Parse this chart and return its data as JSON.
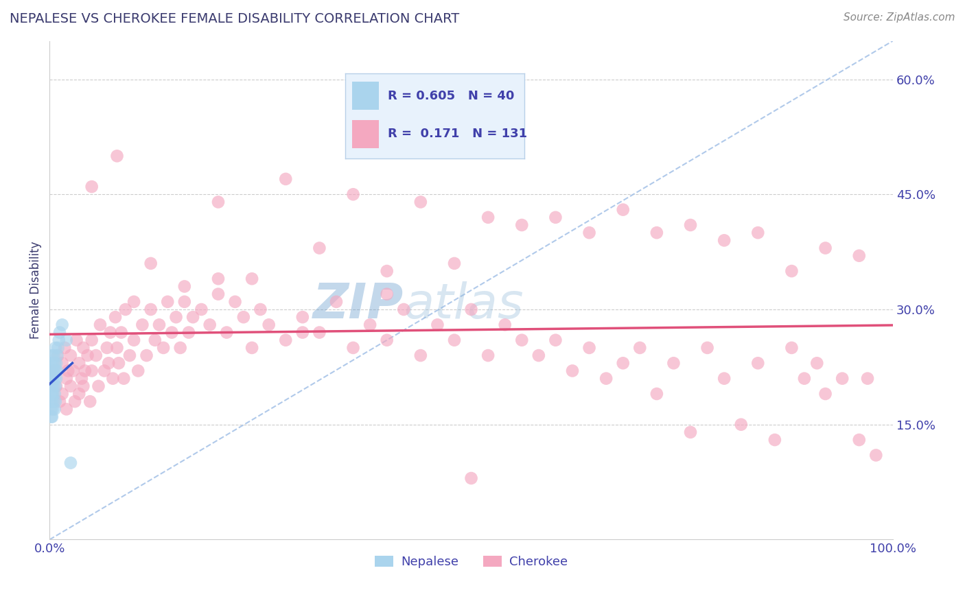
{
  "title": "NEPALESE VS CHEROKEE FEMALE DISABILITY CORRELATION CHART",
  "source_text": "Source: ZipAtlas.com",
  "ylabel": "Female Disability",
  "title_color": "#3a3a6e",
  "source_color": "#888888",
  "axis_label_color": "#3a3a6e",
  "tick_color": "#4040aa",
  "background_color": "#ffffff",
  "grid_color": "#cccccc",
  "xlim": [
    0.0,
    1.0
  ],
  "ylim": [
    0.0,
    0.65
  ],
  "yticks": [
    0.15,
    0.3,
    0.45,
    0.6
  ],
  "ytick_labels": [
    "15.0%",
    "30.0%",
    "45.0%",
    "60.0%"
  ],
  "xtick_left_label": "0.0%",
  "xtick_right_label": "100.0%",
  "nepalese_color": "#aad4ed",
  "cherokee_color": "#f4a8c0",
  "nepalese_line_color": "#3355cc",
  "cherokee_line_color": "#e0507a",
  "diag_line_color": "#a8c4e8",
  "legend_box_color": "#e8f2fc",
  "legend_border_color": "#b8d0e8",
  "R_nepalese": 0.605,
  "N_nepalese": 40,
  "R_cherokee": 0.171,
  "N_cherokee": 131,
  "nepalese_x": [
    0.001,
    0.001,
    0.001,
    0.002,
    0.002,
    0.002,
    0.002,
    0.002,
    0.003,
    0.003,
    0.003,
    0.003,
    0.003,
    0.003,
    0.004,
    0.004,
    0.004,
    0.004,
    0.005,
    0.005,
    0.005,
    0.005,
    0.006,
    0.006,
    0.006,
    0.006,
    0.007,
    0.007,
    0.007,
    0.007,
    0.008,
    0.008,
    0.009,
    0.009,
    0.01,
    0.011,
    0.012,
    0.015,
    0.02,
    0.025
  ],
  "nepalese_y": [
    0.18,
    0.2,
    0.22,
    0.17,
    0.19,
    0.21,
    0.23,
    0.16,
    0.18,
    0.2,
    0.22,
    0.19,
    0.24,
    0.16,
    0.19,
    0.21,
    0.23,
    0.17,
    0.2,
    0.22,
    0.18,
    0.24,
    0.19,
    0.21,
    0.23,
    0.17,
    0.2,
    0.22,
    0.18,
    0.25,
    0.21,
    0.23,
    0.22,
    0.24,
    0.25,
    0.26,
    0.27,
    0.28,
    0.26,
    0.1
  ],
  "cherokee_x": [
    0.005,
    0.008,
    0.01,
    0.012,
    0.015,
    0.015,
    0.018,
    0.02,
    0.02,
    0.022,
    0.025,
    0.025,
    0.028,
    0.03,
    0.032,
    0.035,
    0.035,
    0.038,
    0.04,
    0.04,
    0.042,
    0.045,
    0.048,
    0.05,
    0.05,
    0.055,
    0.058,
    0.06,
    0.065,
    0.068,
    0.07,
    0.072,
    0.075,
    0.078,
    0.08,
    0.082,
    0.085,
    0.088,
    0.09,
    0.095,
    0.1,
    0.105,
    0.11,
    0.115,
    0.12,
    0.125,
    0.13,
    0.135,
    0.14,
    0.145,
    0.15,
    0.155,
    0.16,
    0.165,
    0.17,
    0.18,
    0.19,
    0.2,
    0.21,
    0.22,
    0.23,
    0.24,
    0.25,
    0.26,
    0.28,
    0.3,
    0.32,
    0.34,
    0.36,
    0.38,
    0.4,
    0.42,
    0.44,
    0.46,
    0.48,
    0.5,
    0.52,
    0.54,
    0.56,
    0.58,
    0.6,
    0.62,
    0.64,
    0.66,
    0.68,
    0.7,
    0.72,
    0.74,
    0.76,
    0.78,
    0.8,
    0.82,
    0.84,
    0.86,
    0.88,
    0.895,
    0.91,
    0.92,
    0.94,
    0.96,
    0.97,
    0.98,
    0.05,
    0.08,
    0.12,
    0.16,
    0.2,
    0.24,
    0.28,
    0.32,
    0.36,
    0.4,
    0.44,
    0.48,
    0.52,
    0.56,
    0.6,
    0.64,
    0.68,
    0.72,
    0.76,
    0.8,
    0.84,
    0.88,
    0.92,
    0.96,
    0.1,
    0.2,
    0.3,
    0.4,
    0.5
  ],
  "cherokee_y": [
    0.22,
    0.2,
    0.24,
    0.18,
    0.23,
    0.19,
    0.25,
    0.21,
    0.17,
    0.22,
    0.2,
    0.24,
    0.22,
    0.18,
    0.26,
    0.23,
    0.19,
    0.21,
    0.25,
    0.2,
    0.22,
    0.24,
    0.18,
    0.22,
    0.26,
    0.24,
    0.2,
    0.28,
    0.22,
    0.25,
    0.23,
    0.27,
    0.21,
    0.29,
    0.25,
    0.23,
    0.27,
    0.21,
    0.3,
    0.24,
    0.26,
    0.22,
    0.28,
    0.24,
    0.3,
    0.26,
    0.28,
    0.25,
    0.31,
    0.27,
    0.29,
    0.25,
    0.31,
    0.27,
    0.29,
    0.3,
    0.28,
    0.32,
    0.27,
    0.31,
    0.29,
    0.25,
    0.3,
    0.28,
    0.26,
    0.29,
    0.27,
    0.31,
    0.25,
    0.28,
    0.26,
    0.3,
    0.24,
    0.28,
    0.26,
    0.3,
    0.24,
    0.28,
    0.26,
    0.24,
    0.26,
    0.22,
    0.25,
    0.21,
    0.23,
    0.25,
    0.19,
    0.23,
    0.14,
    0.25,
    0.21,
    0.15,
    0.23,
    0.13,
    0.25,
    0.21,
    0.23,
    0.19,
    0.21,
    0.13,
    0.21,
    0.11,
    0.46,
    0.5,
    0.36,
    0.33,
    0.44,
    0.34,
    0.47,
    0.38,
    0.45,
    0.35,
    0.44,
    0.36,
    0.42,
    0.41,
    0.42,
    0.4,
    0.43,
    0.4,
    0.41,
    0.39,
    0.4,
    0.35,
    0.38,
    0.37,
    0.31,
    0.34,
    0.27,
    0.32,
    0.08
  ],
  "watermark_zip": "ZIP",
  "watermark_atlas": "atlas",
  "watermark_color": "#c8dff0",
  "watermark_alpha": 0.6,
  "legend_label_nepalese": "Nepalese",
  "legend_label_cherokee": "Cherokee"
}
